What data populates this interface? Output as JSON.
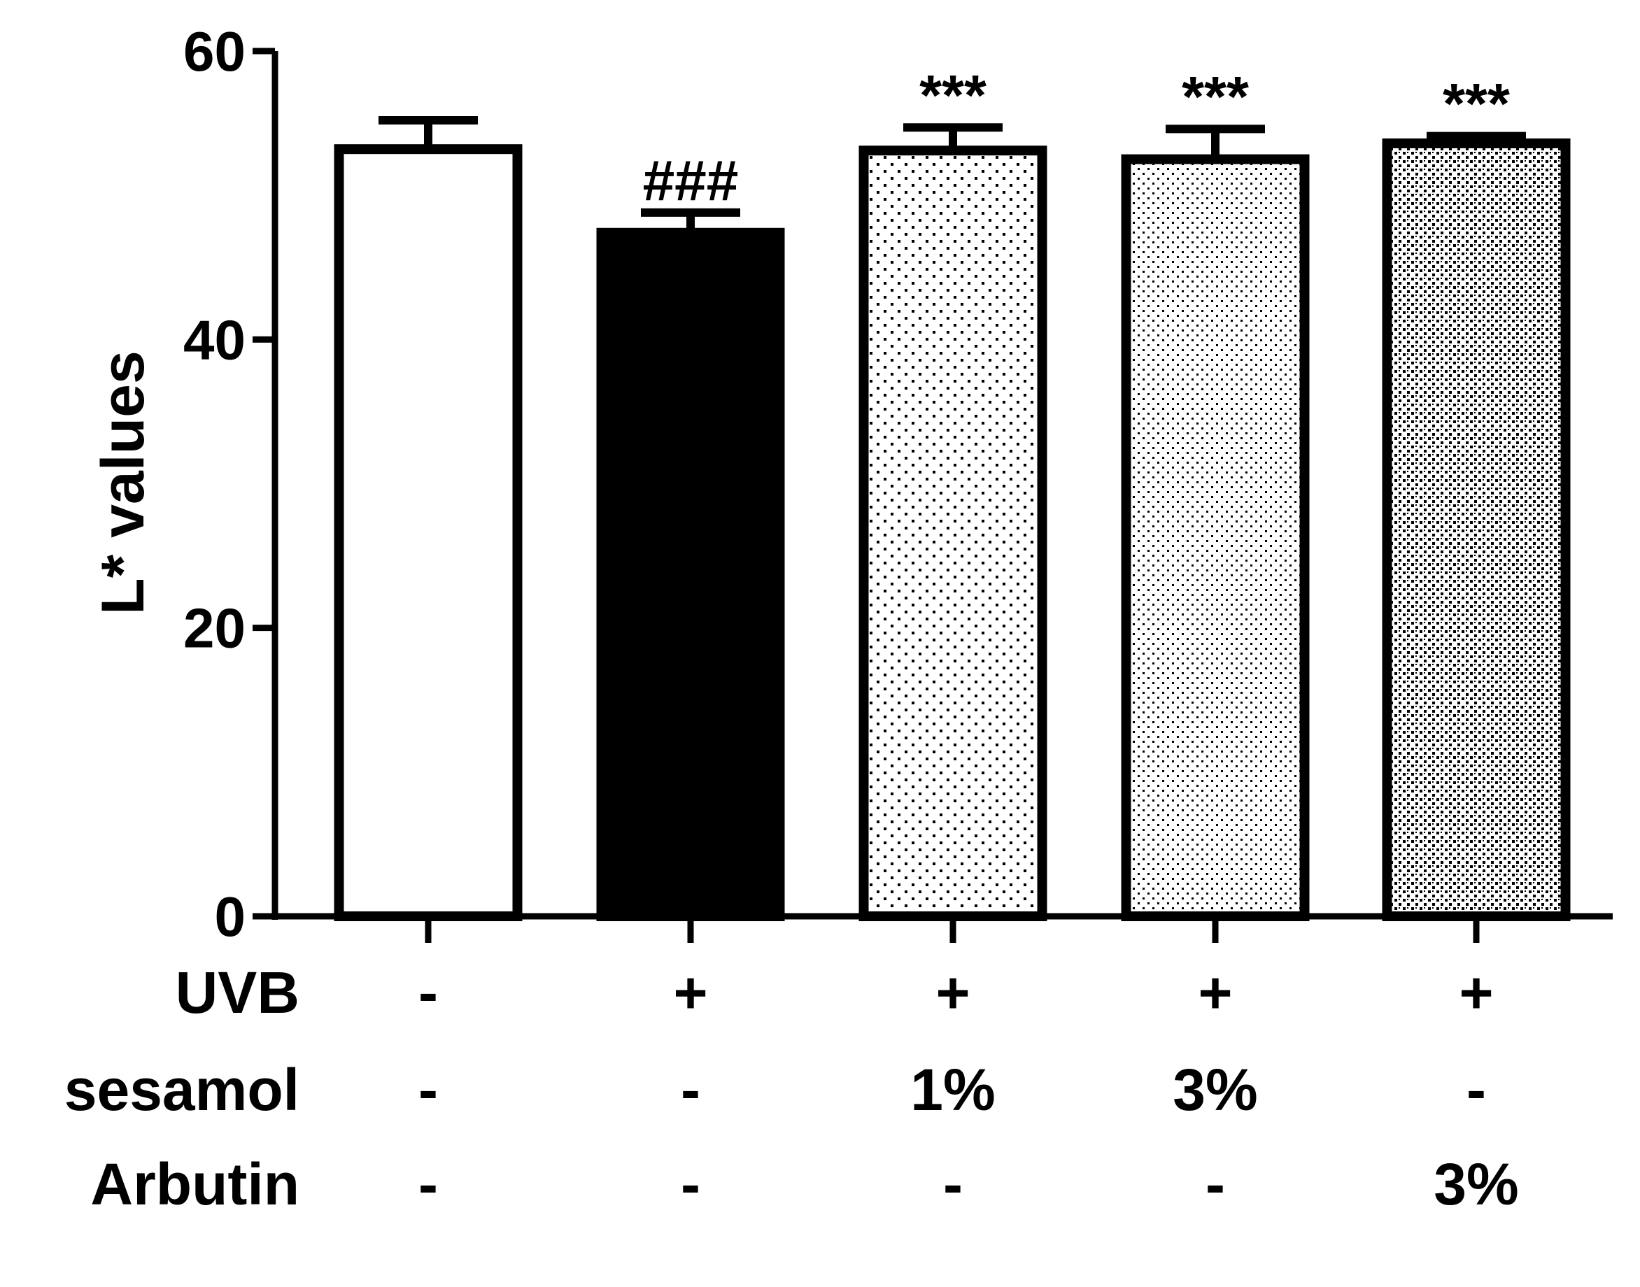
{
  "chart_data": {
    "type": "bar",
    "ylabel": "L* values",
    "ylim": [
      0,
      60
    ],
    "yticks": [
      0,
      20,
      40,
      60
    ],
    "grid": false,
    "bars": [
      {
        "value": 53.2,
        "error": 2.0,
        "fill": "white",
        "annotation": ""
      },
      {
        "value": 47.4,
        "error": 1.4,
        "fill": "black",
        "annotation": "###"
      },
      {
        "value": 53.1,
        "error": 1.6,
        "fill": "sparse-dots",
        "annotation": "***"
      },
      {
        "value": 52.5,
        "error": 2.1,
        "fill": "fine-dots",
        "annotation": "***"
      },
      {
        "value": 53.6,
        "error": 0.5,
        "fill": "dense-dots",
        "annotation": "***"
      }
    ],
    "treatment_rows": [
      {
        "label": "UVB",
        "values": [
          "-",
          "+",
          "+",
          "+",
          "+"
        ]
      },
      {
        "label": "sesamol",
        "values": [
          "-",
          "-",
          "1%",
          "3%",
          "-"
        ]
      },
      {
        "label": "Arbutin",
        "values": [
          "-",
          "-",
          "-",
          "-",
          "3%"
        ]
      }
    ]
  },
  "colors": {
    "axis": "#000000",
    "background": "#ffffff"
  }
}
